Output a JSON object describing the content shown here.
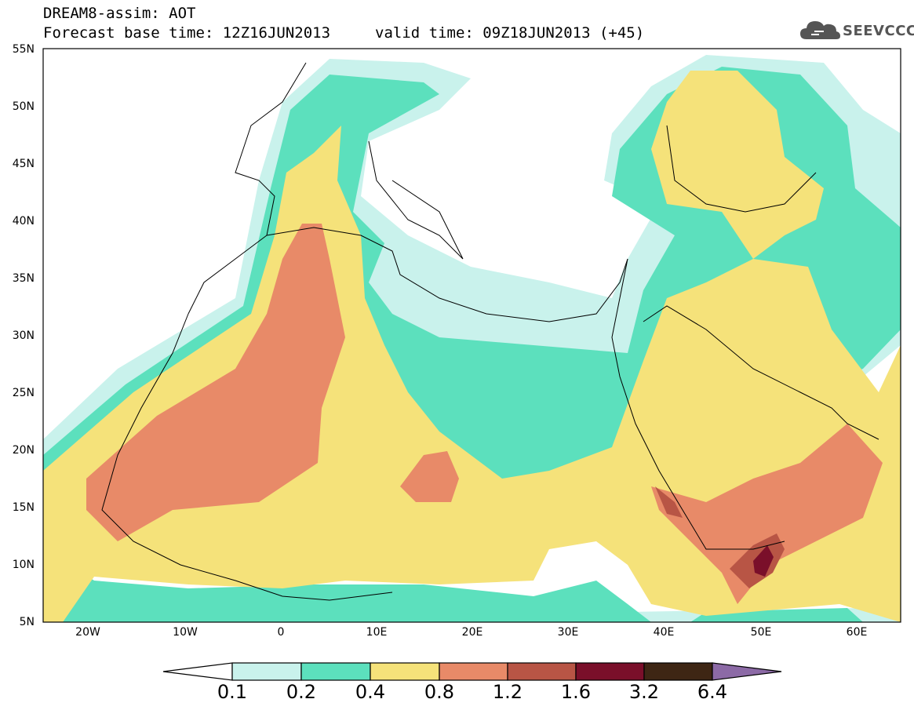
{
  "title": {
    "line1": "DREAM8-assim: AOT",
    "line2": "Forecast base time: 12Z16JUN2013",
    "line3": "valid time: 09Z18JUN2013 (+45)"
  },
  "logo": {
    "text": "SEEVCCC",
    "icon": "cloud-icon"
  },
  "axes": {
    "y_labels": [
      "55N",
      "50N",
      "45N",
      "40N",
      "35N",
      "30N",
      "25N",
      "20N",
      "15N",
      "10N",
      "5N"
    ],
    "x_labels": [
      "20W",
      "10W",
      "0",
      "10E",
      "20E",
      "30E",
      "40E",
      "50E",
      "60E"
    ]
  },
  "colorbar": {
    "levels": [
      "0.1",
      "0.2",
      "0.4",
      "0.8",
      "1.2",
      "1.6",
      "3.2",
      "6.4"
    ],
    "colors": {
      "under": "#ffffff",
      "c1": "#c9f2ec",
      "c2": "#5ce0bd",
      "c3": "#f5e27a",
      "c4": "#e88a68",
      "c5": "#b85545",
      "c6": "#7a0f2a",
      "c7": "#3e2614",
      "over": "#8c6aa6"
    }
  }
}
